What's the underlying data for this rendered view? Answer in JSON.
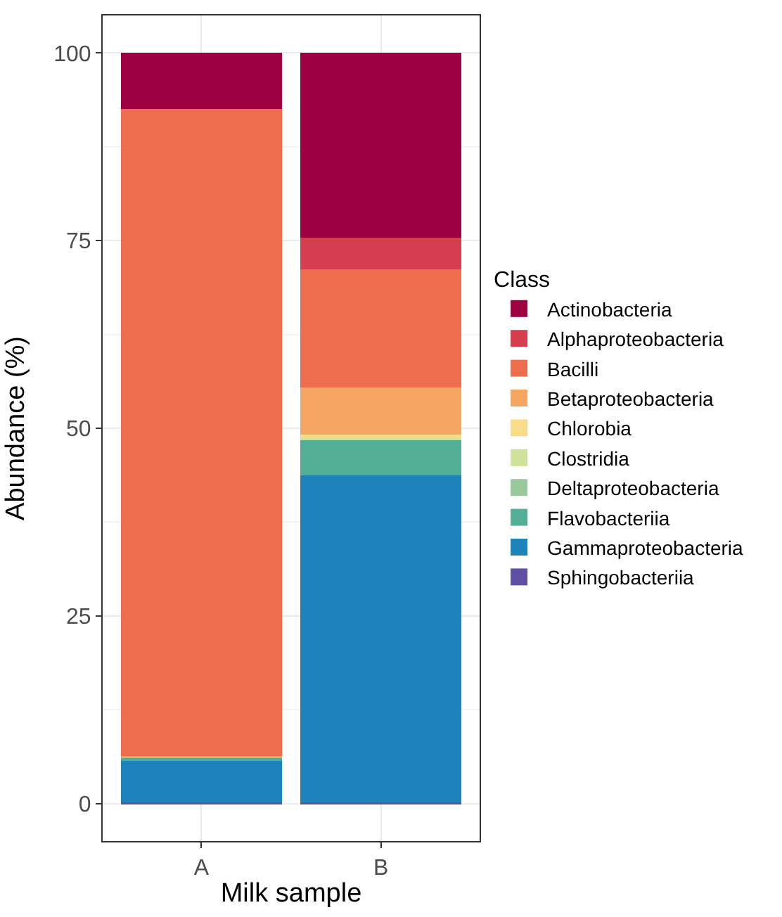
{
  "chart_data": {
    "type": "bar",
    "stacked": true,
    "xlabel": "Milk sample",
    "ylabel": "Abundance (%)",
    "legend_title": "Class",
    "categories": [
      "A",
      "B"
    ],
    "series": [
      {
        "name": "Sphingobacteriia",
        "color": "#5e4fa2",
        "values": [
          0.2,
          0.2
        ]
      },
      {
        "name": "Gammaproteobacteria",
        "color": "#1f83bb",
        "values": [
          5.5,
          43.5
        ]
      },
      {
        "name": "Flavobacteriia",
        "color": "#52ae94",
        "values": [
          0.4,
          4.8
        ]
      },
      {
        "name": "Deltaproteobacteria",
        "color": "#99c99a",
        "values": [
          0,
          0
        ]
      },
      {
        "name": "Clostridia",
        "color": "#cfe29a",
        "values": [
          0,
          0.2
        ]
      },
      {
        "name": "Chlorobia",
        "color": "#f8dc8a",
        "values": [
          0,
          0.5
        ]
      },
      {
        "name": "Betaproteobacteria",
        "color": "#f4a662",
        "values": [
          0.2,
          6.2
        ]
      },
      {
        "name": "Bacilli",
        "color": "#ec6e4e",
        "values": [
          86.2,
          15.8
        ]
      },
      {
        "name": "Alphaproteobacteria",
        "color": "#d53e4f",
        "values": [
          0,
          4.2
        ]
      },
      {
        "name": "Actinobacteria",
        "color": "#9e0142",
        "values": [
          7.5,
          24.6
        ]
      }
    ],
    "ylim": [
      -5,
      105
    ],
    "yticks": [
      0,
      25,
      50,
      75,
      100
    ],
    "grid": true,
    "legend": "right"
  }
}
